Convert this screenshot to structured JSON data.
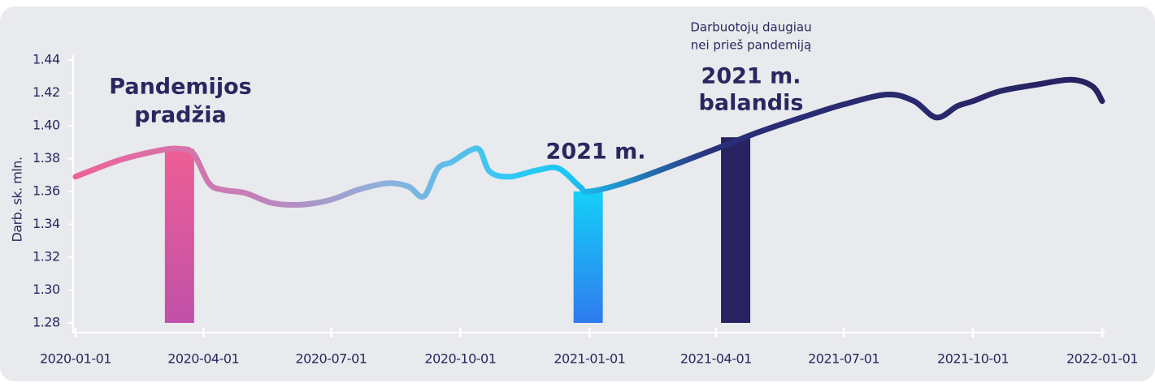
{
  "chart_data": {
    "type": "line",
    "y_label": "Darb. sk. mln.",
    "x": [
      "2020-01-01",
      "2020-02-01",
      "2020-03-01",
      "2020-03-15",
      "2020-03-25",
      "2020-04-05",
      "2020-04-15",
      "2020-05-01",
      "2020-05-20",
      "2020-06-10",
      "2020-07-01",
      "2020-07-20",
      "2020-08-10",
      "2020-08-25",
      "2020-09-05",
      "2020-09-15",
      "2020-09-25",
      "2020-10-08",
      "2020-10-15",
      "2020-10-22",
      "2020-11-05",
      "2020-11-25",
      "2020-12-10",
      "2020-12-25",
      "2021-01-01",
      "2021-02-01",
      "2021-04-01",
      "2021-05-01",
      "2021-06-01",
      "2021-07-01",
      "2021-08-01",
      "2021-08-20",
      "2021-09-05",
      "2021-09-20",
      "2021-10-01",
      "2021-10-20",
      "2021-11-15",
      "2021-12-10",
      "2021-12-25",
      "2022-01-01"
    ],
    "series": [
      {
        "colors": [
          "#f0619a",
          "#c47fb8",
          "#8fb0dc",
          "#33c9f3",
          "#1bc6f6",
          "#2a2f7a",
          "#272260"
        ],
        "values": [
          1.369,
          1.379,
          1.385,
          1.386,
          1.383,
          1.365,
          1.361,
          1.359,
          1.353,
          1.352,
          1.355,
          1.361,
          1.365,
          1.363,
          1.357,
          1.374,
          1.378,
          1.385,
          1.385,
          1.372,
          1.369,
          1.373,
          1.374,
          1.363,
          1.36,
          1.367,
          1.386,
          1.396,
          1.405,
          1.413,
          1.419,
          1.415,
          1.405,
          1.412,
          1.415,
          1.421,
          1.425,
          1.428,
          1.424,
          1.415
        ]
      }
    ],
    "bars": {
      "x": [
        "2020-03-15",
        "2020-12-31",
        "2021-04-15"
      ],
      "values": [
        1.386,
        1.36,
        1.393
      ],
      "colors": [
        [
          "#ee5f95",
          "#c050a8"
        ],
        [
          "#14d0f8",
          "#2f7bee"
        ],
        [
          "#272260",
          "#272260"
        ]
      ]
    },
    "annotations": [
      {
        "lines": [
          "Pandemijos",
          "pradžia"
        ]
      },
      {
        "lines": [
          "2021 m."
        ]
      },
      {
        "lines": [
          "Darbuotojų daugiau",
          "nei prieš pandemiją"
        ]
      },
      {
        "lines": [
          "2021 m.",
          "balandis"
        ]
      }
    ],
    "xlim": [
      "2020-01-01",
      "2022-01-01"
    ],
    "xticks": [
      "2020-01-01",
      "2020-04-01",
      "2020-07-01",
      "2020-10-01",
      "2021-01-01",
      "2021-04-01",
      "2021-07-01",
      "2021-10-01",
      "2022-01-01"
    ],
    "ylim": [
      1.28,
      1.44
    ],
    "yticks": [
      1.28,
      1.3,
      1.32,
      1.34,
      1.36,
      1.38,
      1.4,
      1.42,
      1.44
    ],
    "ytick_labels": [
      "1.28",
      "1.30",
      "1.32",
      "1.34",
      "1.36",
      "1.38",
      "1.40",
      "1.42",
      "1.44"
    ]
  }
}
